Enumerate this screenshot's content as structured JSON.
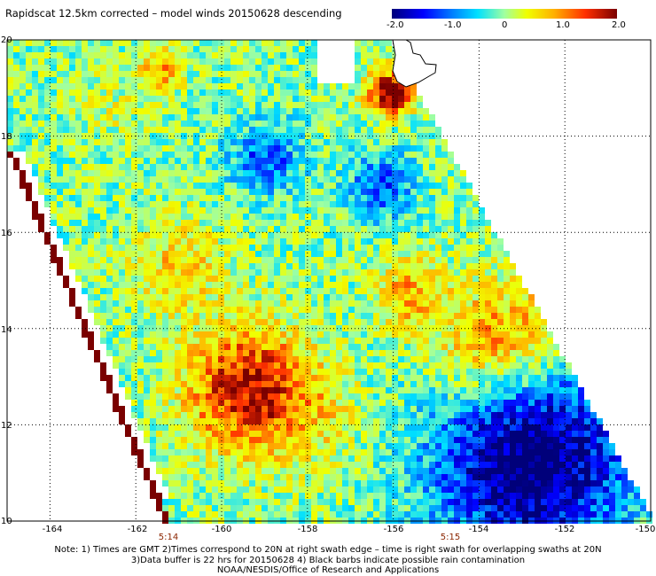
{
  "title": "Rapidscat 12.5km corrected – model winds 20150628 descending",
  "colorbar": {
    "labels": [
      "-2.0",
      "-1.0",
      "0",
      "1.0",
      "2.0"
    ],
    "colors": [
      "#00007a",
      "#0000ff",
      "#0080ff",
      "#00e0ff",
      "#a0ffa0",
      "#f0ff00",
      "#ffb000",
      "#ff3000",
      "#7a0000"
    ]
  },
  "chart_data": {
    "type": "heatmap",
    "x_axis": {
      "range": [
        -165,
        -150
      ],
      "ticks": [
        "-164",
        "-162",
        "-160",
        "-158",
        "-156",
        "-154",
        "-152",
        "-150"
      ]
    },
    "y_axis": {
      "range": [
        10,
        20
      ],
      "ticks": [
        "10",
        "12",
        "14",
        "16",
        "18",
        "20"
      ]
    },
    "value_range": [
      -2.0,
      2.0
    ],
    "grid": "dotted",
    "swath_times": [
      {
        "label": "5:14",
        "lon": -161.5
      },
      {
        "label": "5:15",
        "lon": -155.3
      }
    ]
  },
  "notes": [
    "Note: 1) Times are GMT 2)Times correspond to 20N at right swath edge – time is right swath for overlapping swaths at 20N",
    "3)Data buffer is 22 hrs for 20150628 4) Black barbs indicate possible rain contamination",
    "NOAA/NESDIS/Office of Research and Applications"
  ]
}
